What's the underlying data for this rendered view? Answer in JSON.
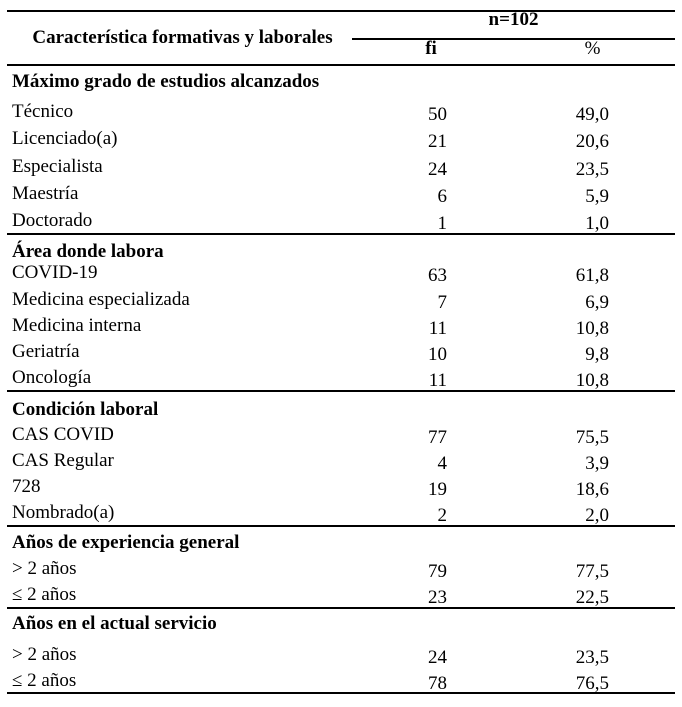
{
  "colors": {
    "text": "#000000",
    "line": "#000000",
    "background": "#ffffff"
  },
  "table": {
    "header": {
      "characteristic_label": "Característica formativas y laborales",
      "n_label": "n=102",
      "fi_label": "fi",
      "percent_label": "%"
    },
    "sections": [
      {
        "title": "Máximo grado de estudios alcanzados",
        "rows": [
          {
            "label": "Técnico",
            "fi": "50",
            "pct": "49,0"
          },
          {
            "label": "Licenciado(a)",
            "fi": "21",
            "pct": "20,6"
          },
          {
            "label": "Especialista",
            "fi": "24",
            "pct": "23,5"
          },
          {
            "label": "Maestría",
            "fi": "6",
            "pct": "5,9"
          },
          {
            "label": "Doctorado",
            "fi": "1",
            "pct": "1,0"
          }
        ]
      },
      {
        "title": "Área donde labora",
        "rows": [
          {
            "label": "COVID-19",
            "fi": "63",
            "pct": "61,8"
          },
          {
            "label": "Medicina especializada",
            "fi": "7",
            "pct": "6,9"
          },
          {
            "label": "Medicina interna",
            "fi": "11",
            "pct": "10,8"
          },
          {
            "label": "Geriatría",
            "fi": "10",
            "pct": "9,8"
          },
          {
            "label": "Oncología",
            "fi": "11",
            "pct": "10,8"
          }
        ]
      },
      {
        "title": "Condición laboral",
        "rows": [
          {
            "label": "CAS COVID",
            "fi": "77",
            "pct": "75,5"
          },
          {
            "label": "CAS Regular",
            "fi": "4",
            "pct": "3,9"
          },
          {
            "label": "728",
            "fi": "19",
            "pct": "18,6"
          },
          {
            "label": "Nombrado(a)",
            "fi": "2",
            "pct": "2,0"
          }
        ]
      },
      {
        "title": "Años de experiencia general",
        "rows": [
          {
            "label": "> 2 años",
            "fi": "79",
            "pct": "77,5"
          },
          {
            "label": "≤ 2 años",
            "fi": "23",
            "pct": "22,5"
          }
        ]
      },
      {
        "title": "Años en el actual servicio",
        "rows": [
          {
            "label": "> 2 años",
            "fi": "24",
            "pct": "23,5"
          },
          {
            "label": "≤ 2 años",
            "fi": "78",
            "pct": "76,5"
          }
        ]
      }
    ]
  }
}
